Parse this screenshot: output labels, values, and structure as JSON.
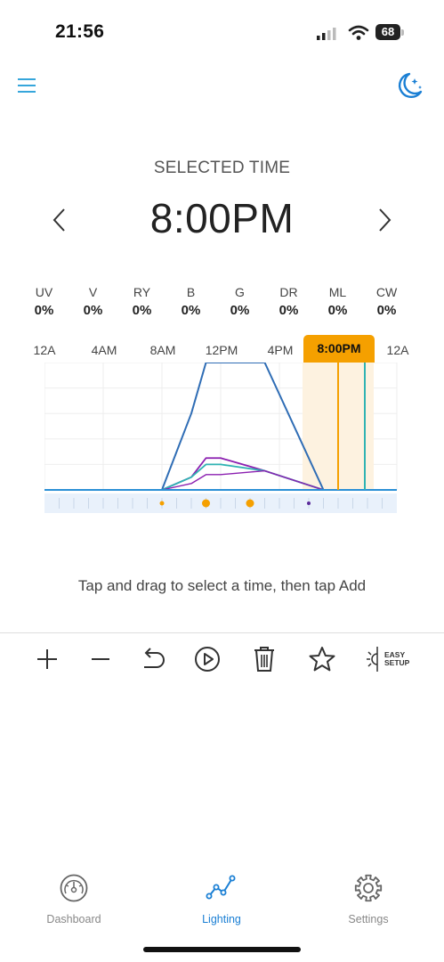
{
  "status_bar": {
    "time": "21:56",
    "battery": "68"
  },
  "header": {
    "menu_icon": "menu-icon",
    "night_mode_icon": "moon-stars-icon"
  },
  "selected_time": {
    "label": "SELECTED TIME",
    "value": "8:00PM",
    "prev_icon": "chevron-left-icon",
    "next_icon": "chevron-right-icon"
  },
  "channels": [
    {
      "name": "UV",
      "value": "0%"
    },
    {
      "name": "V",
      "value": "0%"
    },
    {
      "name": "RY",
      "value": "0%"
    },
    {
      "name": "B",
      "value": "0%"
    },
    {
      "name": "G",
      "value": "0%"
    },
    {
      "name": "DR",
      "value": "0%"
    },
    {
      "name": "ML",
      "value": "0%"
    },
    {
      "name": "CW",
      "value": "0%"
    }
  ],
  "timeline": {
    "labels": [
      "12A",
      "4AM",
      "8AM",
      "12PM",
      "4PM",
      "12A"
    ],
    "selected_label": "8:00PM",
    "colors": {
      "selected": "#f5a000",
      "blue": "#2f6db5",
      "purple": "#8b1fb0",
      "teal": "#2fb3b3",
      "baseline": "#2a8fd6"
    }
  },
  "chart_data": {
    "type": "line",
    "x": [
      "00:00",
      "08:00",
      "10:00",
      "11:00",
      "12:00",
      "15:00",
      "19:00",
      "24:00"
    ],
    "series": [
      {
        "values": [
          0,
          0,
          60,
          100,
          100,
          100,
          0,
          0
        ]
      },
      {
        "values": [
          0,
          0,
          10,
          25,
          25,
          15,
          0,
          0
        ]
      },
      {
        "values": [
          0,
          0,
          10,
          20,
          20,
          15,
          0,
          0
        ]
      },
      {
        "values": [
          0,
          0,
          5,
          12,
          12,
          15,
          0,
          0
        ]
      }
    ],
    "selected_x": "20:00",
    "markers": [
      "08:00",
      "11:00",
      "14:00",
      "18:00"
    ]
  },
  "hint": "Tap and drag to select a time, then tap Add",
  "toolbar": {
    "add_icon": "plus-icon",
    "remove_icon": "minus-icon",
    "undo_icon": "undo-icon",
    "play_icon": "play-icon",
    "delete_icon": "trash-icon",
    "favorite_icon": "star-icon",
    "easy_setup_line1": "EASY",
    "easy_setup_line2": "SETUP"
  },
  "bottom_nav": [
    {
      "label": "Dashboard",
      "icon": "gauge-icon",
      "active": false
    },
    {
      "label": "Lighting",
      "icon": "chart-line-icon",
      "active": true
    },
    {
      "label": "Settings",
      "icon": "gear-icon",
      "active": false
    }
  ],
  "colors": {
    "accent": "#1a7fd4",
    "inactive": "#888888"
  }
}
